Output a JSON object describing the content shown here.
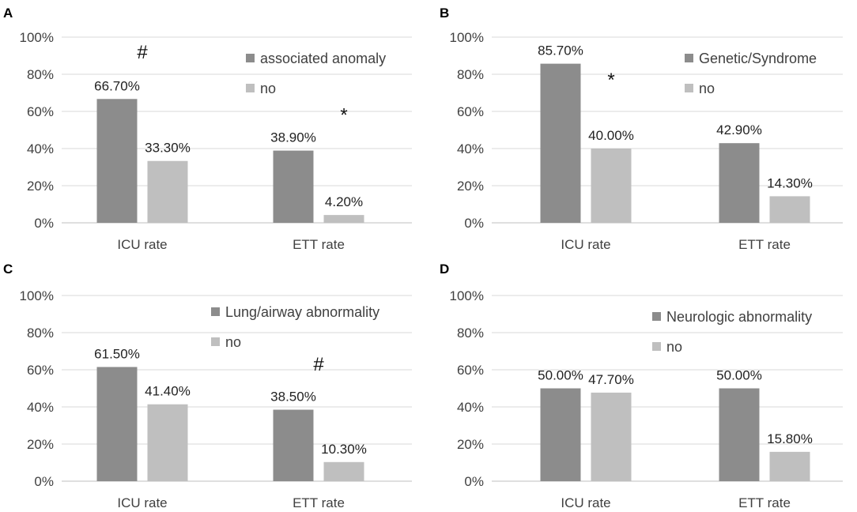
{
  "chart_data": [
    {
      "panel": "A",
      "type": "bar",
      "categories": [
        "ICU rate",
        "ETT rate"
      ],
      "series": [
        {
          "name": "associated anomaly",
          "values": [
            66.7,
            38.9
          ],
          "labels": [
            "66.70%",
            "38.90%"
          ],
          "color": "#8c8c8c"
        },
        {
          "name": "no",
          "values": [
            33.3,
            4.2
          ],
          "labels": [
            "33.30%",
            "4.20%"
          ],
          "color": "#bfbfbf"
        }
      ],
      "yticks": [
        "0%",
        "20%",
        "40%",
        "60%",
        "80%",
        "100%"
      ],
      "ylim": [
        0,
        100
      ],
      "grid": true,
      "legend": "top-right",
      "annotations": [
        {
          "text": "#",
          "category": 0,
          "value": 92
        },
        {
          "text": "*",
          "category": 1,
          "value": 58
        }
      ]
    },
    {
      "panel": "B",
      "type": "bar",
      "categories": [
        "ICU rate",
        "ETT rate"
      ],
      "series": [
        {
          "name": "Genetic/Syndrome",
          "values": [
            85.7,
            42.9
          ],
          "labels": [
            "85.70%",
            "42.90%"
          ],
          "color": "#8c8c8c"
        },
        {
          "name": "no",
          "values": [
            40.0,
            14.3
          ],
          "labels": [
            "40.00%",
            "14.30%"
          ],
          "color": "#bfbfbf"
        }
      ],
      "yticks": [
        "0%",
        "20%",
        "40%",
        "60%",
        "80%",
        "100%"
      ],
      "ylim": [
        0,
        100
      ],
      "grid": true,
      "legend": "top-right",
      "annotations": [
        {
          "text": "*",
          "category": 0,
          "value": 77
        }
      ]
    },
    {
      "panel": "C",
      "type": "bar",
      "categories": [
        "ICU rate",
        "ETT rate"
      ],
      "series": [
        {
          "name": "Lung/airway abnormality",
          "values": [
            61.5,
            38.5
          ],
          "labels": [
            "61.50%",
            "38.50%"
          ],
          "color": "#8c8c8c"
        },
        {
          "name": "no",
          "values": [
            41.4,
            10.3
          ],
          "labels": [
            "41.40%",
            "10.30%"
          ],
          "color": "#bfbfbf"
        }
      ],
      "yticks": [
        "0%",
        "20%",
        "40%",
        "60%",
        "80%",
        "100%"
      ],
      "ylim": [
        0,
        100
      ],
      "grid": true,
      "legend": "top-right",
      "annotations": [
        {
          "text": "#",
          "category": 1,
          "value": 63
        }
      ]
    },
    {
      "panel": "D",
      "type": "bar",
      "categories": [
        "ICU rate",
        "ETT rate"
      ],
      "series": [
        {
          "name": "Neurologic abnormality",
          "values": [
            50.0,
            50.0
          ],
          "labels": [
            "50.00%",
            "50.00%"
          ],
          "color": "#8c8c8c"
        },
        {
          "name": "no",
          "values": [
            47.7,
            15.8
          ],
          "labels": [
            "47.70%",
            "15.80%"
          ],
          "color": "#bfbfbf"
        }
      ],
      "yticks": [
        "0%",
        "20%",
        "40%",
        "60%",
        "80%",
        "100%"
      ],
      "ylim": [
        0,
        100
      ],
      "grid": true,
      "legend": "top-right",
      "annotations": []
    }
  ]
}
